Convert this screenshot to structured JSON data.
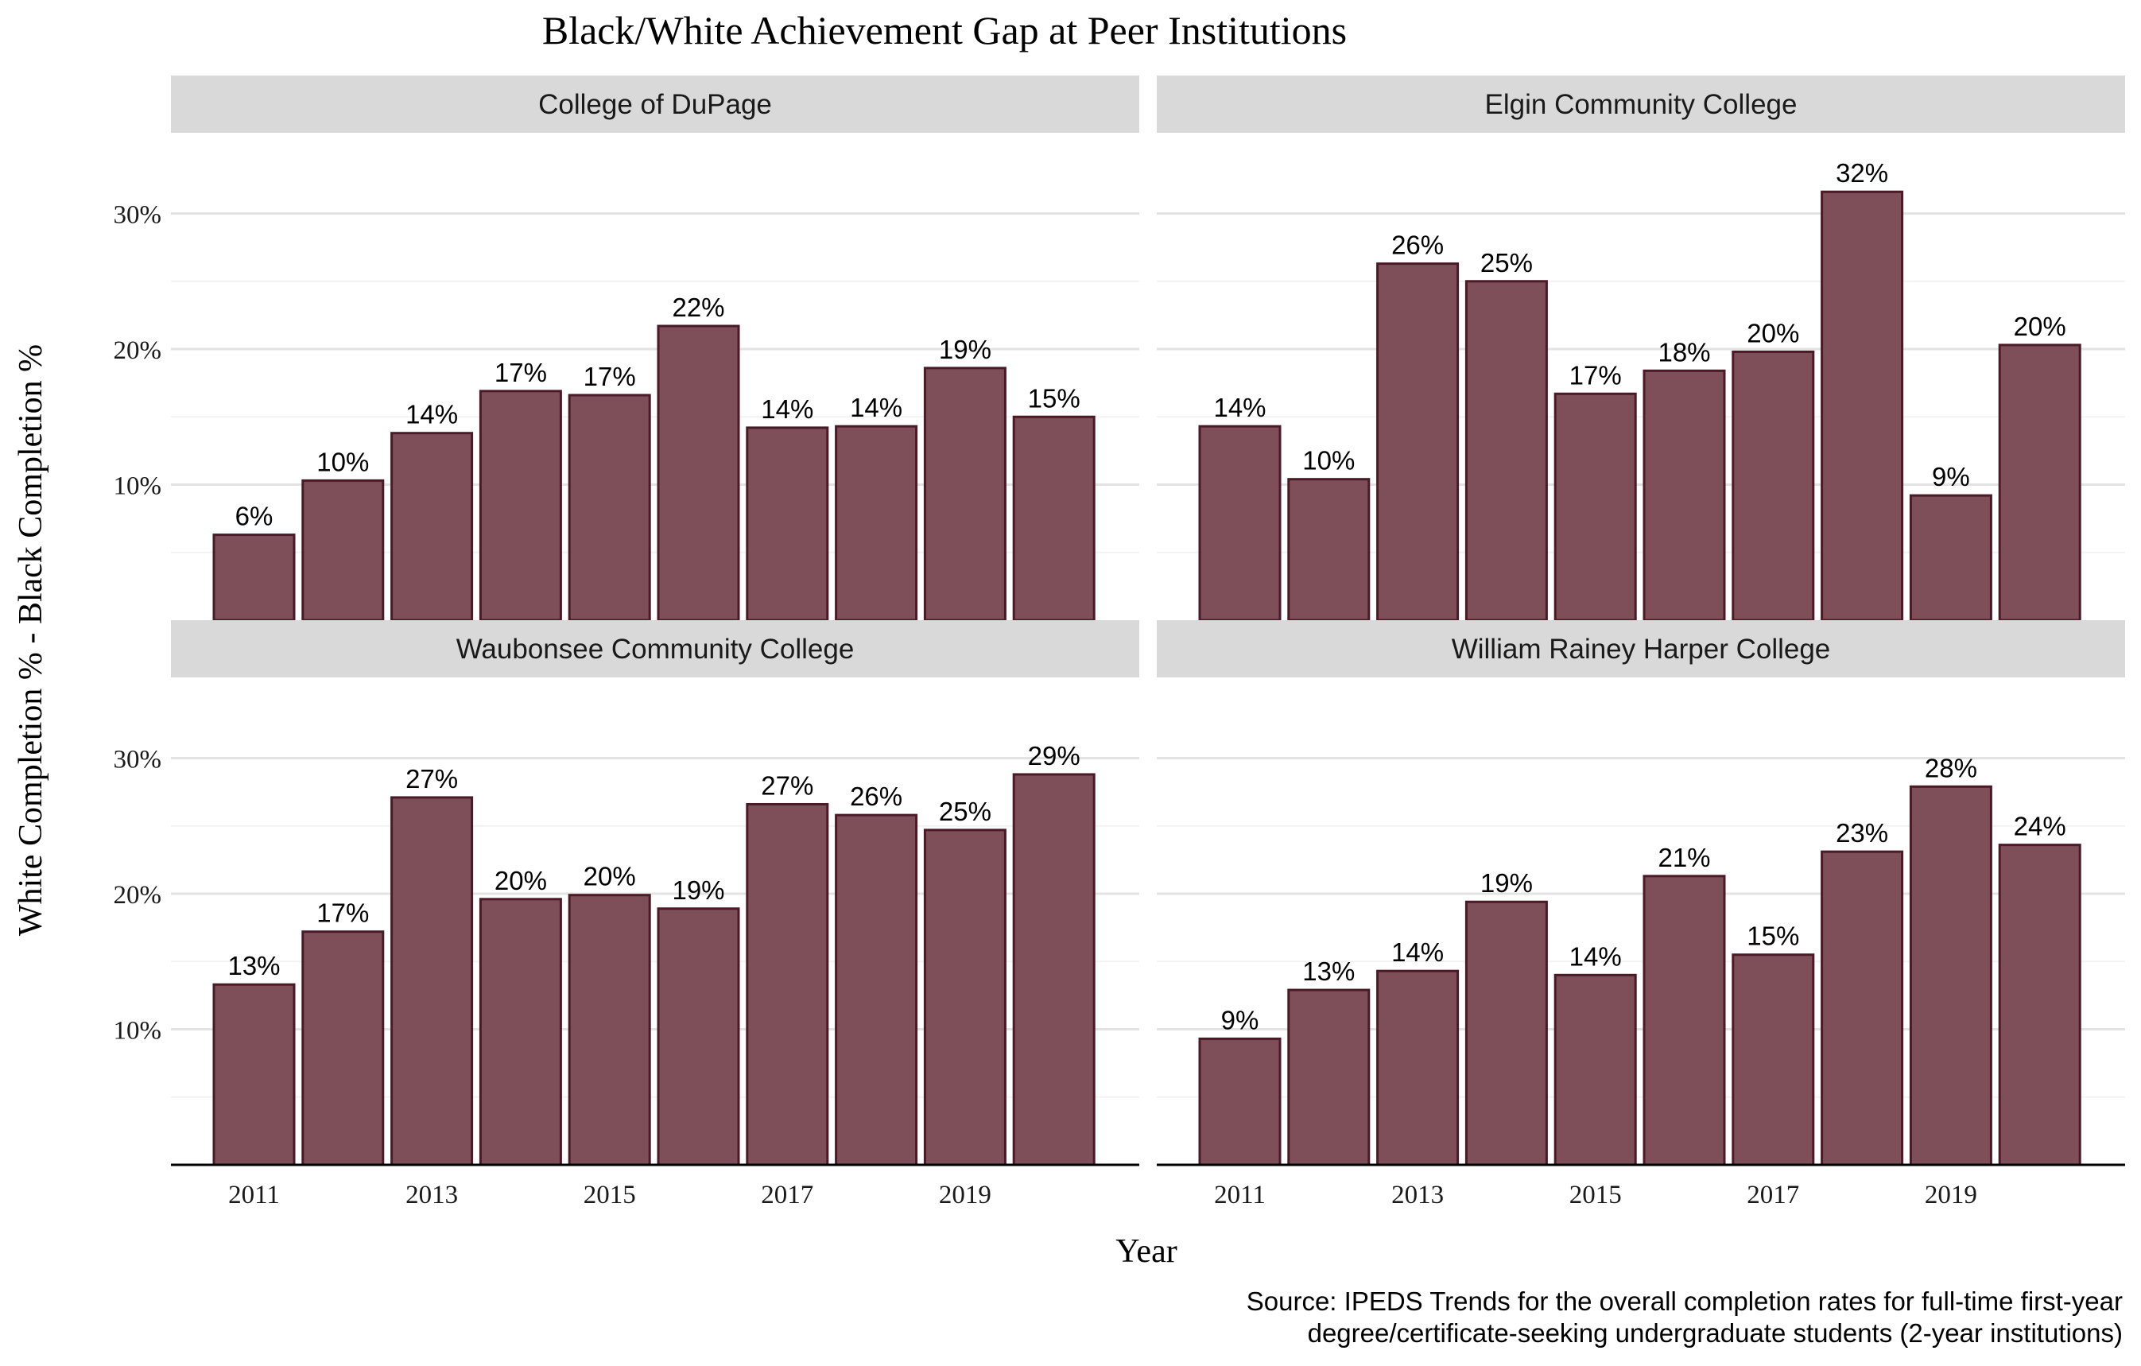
{
  "chart_data": {
    "type": "bar",
    "title": "Black/White Achievement Gap at Peer Institutions",
    "xlabel": "Year",
    "ylabel": "White Completion % - Black Completion %",
    "caption": [
      "Source: IPEDS Trends for the overall completion rates for full-time first-year",
      "degree/certificate-seeking undergraduate students (2-year institutions)"
    ],
    "x": [
      2011,
      2012,
      2013,
      2014,
      2015,
      2016,
      2017,
      2018,
      2019,
      2020
    ],
    "x_ticks": [
      "2011",
      "2013",
      "2015",
      "2017",
      "2019"
    ],
    "y_ticks": [
      "10%",
      "20%",
      "30%"
    ],
    "ylim": [
      0,
      33
    ],
    "grid": true,
    "bar_color": "#7f4f59",
    "bar_outline": "#4a1a26",
    "strip_color": "#d9d9d9",
    "panels": [
      {
        "name": "College of DuPage",
        "values": [
          6.3,
          10.3,
          13.8,
          16.9,
          16.6,
          21.7,
          14.2,
          14.3,
          18.6,
          15.0
        ],
        "labels": [
          "6%",
          "10%",
          "14%",
          "17%",
          "17%",
          "22%",
          "14%",
          "14%",
          "19%",
          "15%"
        ]
      },
      {
        "name": "Elgin Community College",
        "values": [
          14.3,
          10.4,
          26.3,
          25.0,
          16.7,
          18.4,
          19.8,
          31.6,
          9.2,
          20.3
        ],
        "labels": [
          "14%",
          "10%",
          "26%",
          "25%",
          "17%",
          "18%",
          "20%",
          "32%",
          "9%",
          "20%"
        ]
      },
      {
        "name": "Waubonsee Community College",
        "values": [
          13.3,
          17.2,
          27.1,
          19.6,
          19.9,
          18.9,
          26.6,
          25.8,
          24.7,
          28.8
        ],
        "labels": [
          "13%",
          "17%",
          "27%",
          "20%",
          "20%",
          "19%",
          "27%",
          "26%",
          "25%",
          "29%"
        ]
      },
      {
        "name": "William Rainey Harper College",
        "values": [
          9.3,
          12.9,
          14.3,
          19.4,
          14.0,
          21.3,
          15.5,
          23.1,
          27.9,
          23.6
        ],
        "labels": [
          "9%",
          "13%",
          "14%",
          "19%",
          "14%",
          "21%",
          "15%",
          "23%",
          "28%",
          "24%"
        ]
      }
    ]
  }
}
